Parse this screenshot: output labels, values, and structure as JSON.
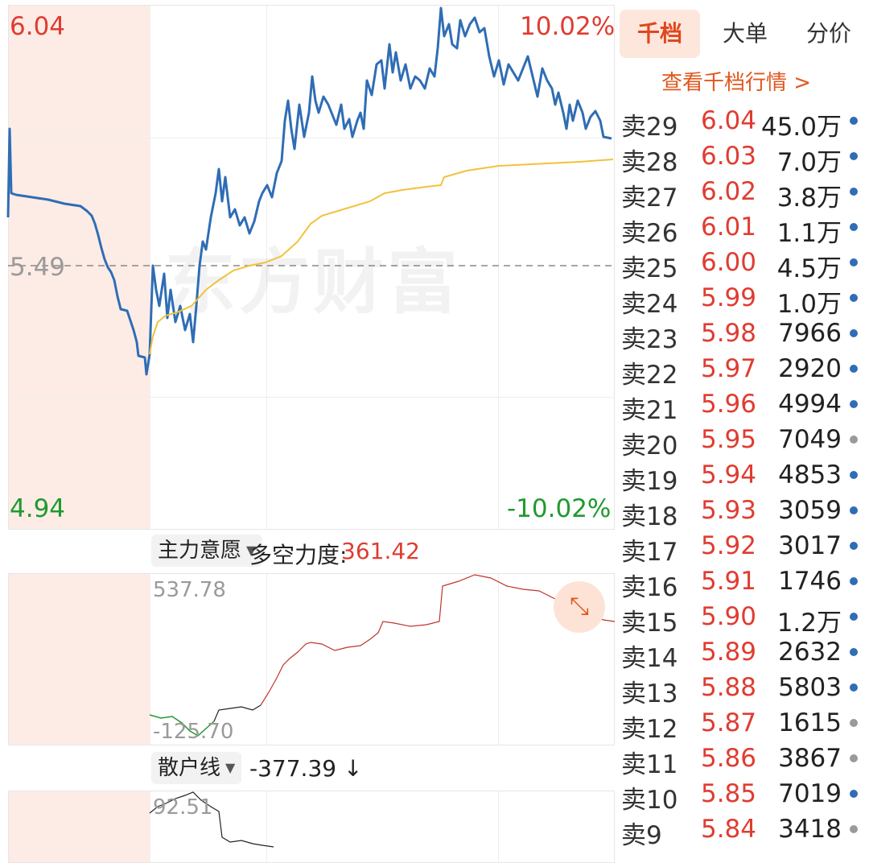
{
  "main_chart": {
    "high_label": "6.04",
    "low_label": "4.94",
    "prev_close_label": "5.49",
    "high_pct": "10.02%",
    "low_pct": "-10.02%",
    "watermark": "东方财富"
  },
  "indicator1": {
    "select_label": "主力意愿",
    "metric_label": "多空力度:",
    "metric_value": "361.42",
    "top_label": "537.78",
    "bottom_label": "-125.70"
  },
  "indicator2": {
    "select_label": "散户线",
    "metric_value": "-377.39",
    "arrow": "↓",
    "top_label": "92.51"
  },
  "tabs": [
    {
      "label": "千档",
      "active": true
    },
    {
      "label": "大单",
      "active": false
    },
    {
      "label": "分价",
      "active": false
    }
  ],
  "view_link": "查看千档行情 >",
  "order_book": [
    {
      "name": "卖29",
      "price": "6.04",
      "volume": "45.0万",
      "dot": "blue"
    },
    {
      "name": "卖28",
      "price": "6.03",
      "volume": "7.0万",
      "dot": "blue"
    },
    {
      "name": "卖27",
      "price": "6.02",
      "volume": "3.8万",
      "dot": "blue"
    },
    {
      "name": "卖26",
      "price": "6.01",
      "volume": "1.1万",
      "dot": "blue"
    },
    {
      "name": "卖25",
      "price": "6.00",
      "volume": "4.5万",
      "dot": "blue"
    },
    {
      "name": "卖24",
      "price": "5.99",
      "volume": "1.0万",
      "dot": "blue"
    },
    {
      "name": "卖23",
      "price": "5.98",
      "volume": "7966",
      "dot": "blue"
    },
    {
      "name": "卖22",
      "price": "5.97",
      "volume": "2920",
      "dot": "blue"
    },
    {
      "name": "卖21",
      "price": "5.96",
      "volume": "4994",
      "dot": "blue"
    },
    {
      "name": "卖20",
      "price": "5.95",
      "volume": "7049",
      "dot": "gray"
    },
    {
      "name": "卖19",
      "price": "5.94",
      "volume": "4853",
      "dot": "blue"
    },
    {
      "name": "卖18",
      "price": "5.93",
      "volume": "3059",
      "dot": "blue"
    },
    {
      "name": "卖17",
      "price": "5.92",
      "volume": "3017",
      "dot": "blue"
    },
    {
      "name": "卖16",
      "price": "5.91",
      "volume": "1746",
      "dot": "blue"
    },
    {
      "name": "卖15",
      "price": "5.90",
      "volume": "1.2万",
      "dot": "blue"
    },
    {
      "name": "卖14",
      "price": "5.89",
      "volume": "2632",
      "dot": "blue"
    },
    {
      "name": "卖13",
      "price": "5.88",
      "volume": "5803",
      "dot": "blue"
    },
    {
      "name": "卖12",
      "price": "5.87",
      "volume": "1615",
      "dot": "gray"
    },
    {
      "name": "卖11",
      "price": "5.86",
      "volume": "3867",
      "dot": "gray"
    },
    {
      "name": "卖10",
      "price": "5.85",
      "volume": "7019",
      "dot": "blue"
    },
    {
      "name": "卖9",
      "price": "5.84",
      "volume": "3418",
      "dot": "gray"
    }
  ],
  "colors": {
    "price_line": "#2f6db5",
    "avg_line": "#f2c23c",
    "up": "#e03c31",
    "down": "#1f9a2f",
    "dot_blue": "#2f6db5",
    "dot_gray": "#9a9a9a"
  }
}
